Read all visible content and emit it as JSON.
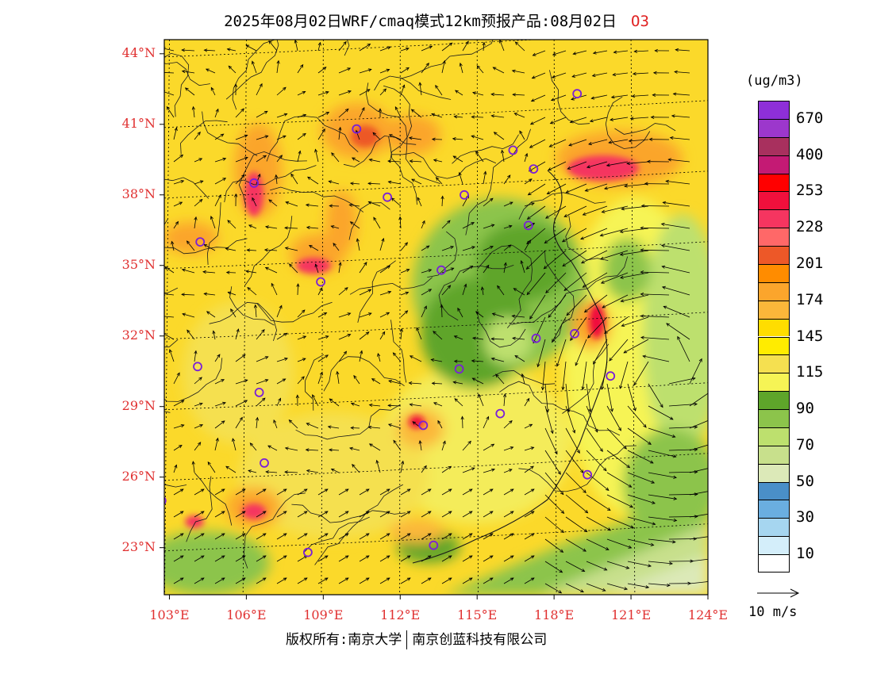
{
  "title": {
    "text": "2025年08月02日WRF/cmaq模式12km预报产品:08月02日",
    "species": "O3"
  },
  "map": {
    "lat_range": [
      21.0,
      44.6
    ],
    "lon_range": [
      102.8,
      124.0
    ],
    "lat_labels": [
      "44°N",
      "41°N",
      "38°N",
      "35°N",
      "32°N",
      "29°N",
      "26°N",
      "23°N"
    ],
    "lon_labels": [
      "103°E",
      "106°E",
      "109°E",
      "112°E",
      "115°E",
      "118°E",
      "121°E",
      "124°E"
    ],
    "monitor_sites": [
      {
        "lon": 118.9,
        "lat": 42.3
      },
      {
        "lon": 110.3,
        "lat": 40.8
      },
      {
        "lon": 116.4,
        "lat": 39.9
      },
      {
        "lon": 117.2,
        "lat": 39.1
      },
      {
        "lon": 106.3,
        "lat": 38.5
      },
      {
        "lon": 111.5,
        "lat": 37.9
      },
      {
        "lon": 114.5,
        "lat": 38.0
      },
      {
        "lon": 117.0,
        "lat": 36.7
      },
      {
        "lon": 104.2,
        "lat": 36.0
      },
      {
        "lon": 108.9,
        "lat": 34.3
      },
      {
        "lon": 113.6,
        "lat": 34.8
      },
      {
        "lon": 117.3,
        "lat": 31.9
      },
      {
        "lon": 118.8,
        "lat": 32.1
      },
      {
        "lon": 120.2,
        "lat": 30.3
      },
      {
        "lon": 114.3,
        "lat": 30.6
      },
      {
        "lon": 104.1,
        "lat": 30.7
      },
      {
        "lon": 106.5,
        "lat": 29.6
      },
      {
        "lon": 112.9,
        "lat": 28.2
      },
      {
        "lon": 115.9,
        "lat": 28.7
      },
      {
        "lon": 106.7,
        "lat": 26.6
      },
      {
        "lon": 119.3,
        "lat": 26.1
      },
      {
        "lon": 102.7,
        "lat": 25.0
      },
      {
        "lon": 113.3,
        "lat": 23.1
      },
      {
        "lon": 108.4,
        "lat": 22.8
      }
    ]
  },
  "colorbar": {
    "unit": "(ug/m3)",
    "colors": [
      "#8e2fd8",
      "#9c37cc",
      "#a8305e",
      "#c41a74",
      "#ff0000",
      "#f0103c",
      "#f53560",
      "#ff6868",
      "#ed5828",
      "#ff8c00",
      "#fba52c",
      "#fbb73a",
      "#ffdd00",
      "#ffec00",
      "#f5e050",
      "#f6f455",
      "#5ea52a",
      "#8cc44b",
      "#bde06e",
      "#c8e08c",
      "#dce9b8",
      "#4a8fc8",
      "#6aaee0",
      "#a6d6f0",
      "#d4eefa",
      "#ffffff"
    ],
    "labels": [
      "670",
      "400",
      "253",
      "228",
      "201",
      "174",
      "145",
      "115",
      "90",
      "70",
      "50",
      "30",
      "10"
    ],
    "label_series": [
      670,
      400,
      253,
      228,
      201,
      174,
      145,
      115,
      90,
      70,
      50,
      30,
      10
    ]
  },
  "wind_reference": {
    "label": "10 m/s",
    "speed": 10
  },
  "footer": {
    "left": "版权所有:南京大学",
    "right": "南京创蓝科技有限公司"
  }
}
